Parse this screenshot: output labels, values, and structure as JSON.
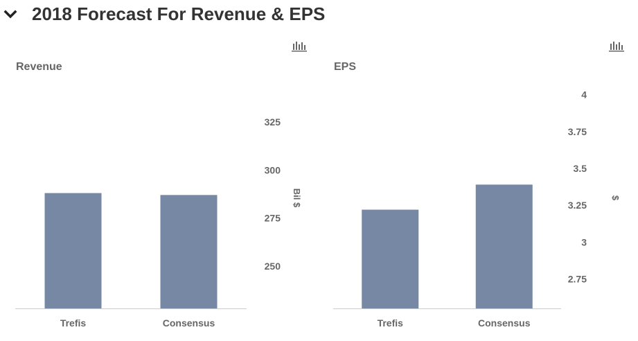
{
  "header": {
    "title": "2018 Forecast For Revenue & EPS",
    "toggle_icon": "chevron-down-icon"
  },
  "colors": {
    "bar": "#7788a5",
    "axis_line": "#cccccc",
    "text": "#666666",
    "title": "#333333"
  },
  "chart_data": [
    {
      "type": "bar",
      "title": "Revenue",
      "menu_icon": "bar-chart-icon",
      "categories": [
        "Trefis",
        "Consensus"
      ],
      "values": [
        288,
        287
      ],
      "ylabel": "Bil $",
      "yticks": [
        250,
        275,
        300,
        325
      ],
      "ylim": [
        228,
        343
      ],
      "grid": false,
      "y_axis_position": "right"
    },
    {
      "type": "bar",
      "title": "EPS",
      "menu_icon": "bar-chart-icon",
      "categories": [
        "Trefis",
        "Consensus"
      ],
      "values": [
        3.22,
        3.39
      ],
      "ylabel": "$",
      "yticks": [
        2.75,
        3,
        3.25,
        3.5,
        3.75,
        4
      ],
      "ylim": [
        2.55,
        4.05
      ],
      "grid": false,
      "y_axis_position": "right"
    }
  ]
}
